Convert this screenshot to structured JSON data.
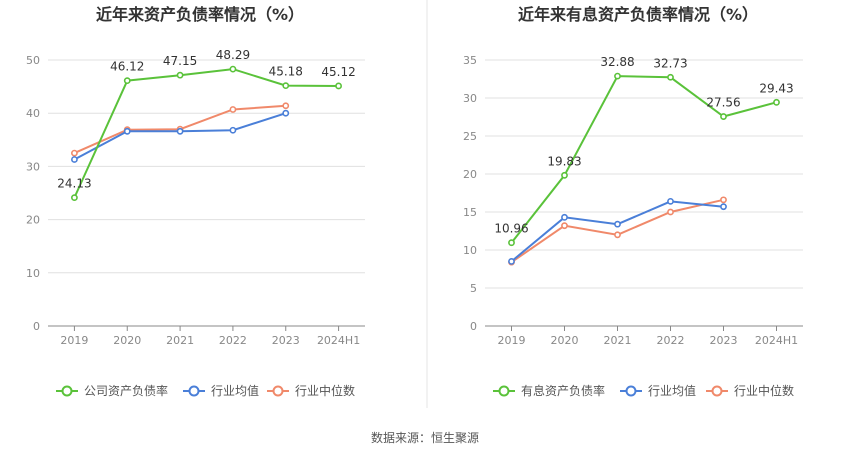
{
  "source_text": "数据来源：恒生聚源",
  "colors": {
    "company": "#5ac23a",
    "avg": "#4a7fd8",
    "median": "#f0896a",
    "grid": "#e0e0e0",
    "axis": "#888888",
    "divider": "#e5e5e5"
  },
  "chart_data": [
    {
      "type": "line",
      "title": "近年来资产负债率情况（%）",
      "categories": [
        "2019",
        "2020",
        "2021",
        "2022",
        "2023",
        "2024H1"
      ],
      "ylim": [
        0,
        50
      ],
      "yticks": [
        0,
        10,
        20,
        30,
        40,
        50
      ],
      "grid": true,
      "legend_position": "bottom",
      "series": [
        {
          "name": "公司资产负债率",
          "key": "company",
          "values": [
            24.13,
            46.12,
            47.15,
            48.29,
            45.18,
            45.12
          ],
          "labels": [
            "24.13",
            "46.12",
            "47.15",
            "48.29",
            "45.18",
            "45.12"
          ]
        },
        {
          "name": "行业均值",
          "key": "avg",
          "values": [
            31.3,
            36.6,
            36.6,
            36.8,
            40.0,
            null
          ]
        },
        {
          "name": "行业中位数",
          "key": "median",
          "values": [
            32.5,
            36.9,
            37.0,
            40.7,
            41.4,
            null
          ]
        }
      ]
    },
    {
      "type": "line",
      "title": "近年来有息资产负债率情况（%）",
      "categories": [
        "2019",
        "2020",
        "2021",
        "2022",
        "2023",
        "2024H1"
      ],
      "ylim": [
        0,
        35
      ],
      "yticks": [
        0,
        5,
        10,
        15,
        20,
        25,
        30,
        35
      ],
      "grid": true,
      "legend_position": "bottom",
      "series": [
        {
          "name": "有息资产负债率",
          "key": "company",
          "values": [
            10.96,
            19.83,
            32.88,
            32.73,
            27.56,
            29.43
          ],
          "labels": [
            "10.96",
            "19.83",
            "32.88",
            "32.73",
            "27.56",
            "29.43"
          ]
        },
        {
          "name": "行业均值",
          "key": "avg",
          "values": [
            8.5,
            14.3,
            13.4,
            16.4,
            15.7,
            null
          ]
        },
        {
          "name": "行业中位数",
          "key": "median",
          "values": [
            8.4,
            13.2,
            12.0,
            15.0,
            16.6,
            null
          ]
        }
      ]
    }
  ]
}
